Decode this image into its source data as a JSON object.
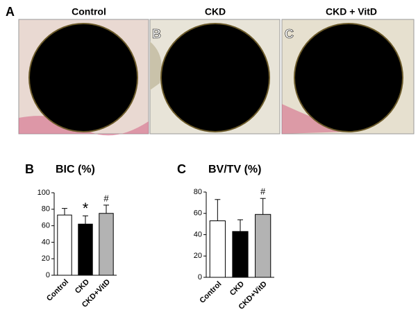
{
  "figure": {
    "panel_label": "A",
    "images": [
      {
        "title": "Control"
      },
      {
        "title": "CKD",
        "label": "B"
      },
      {
        "title": "CKD + VitD",
        "label": "C"
      }
    ]
  },
  "chart_data": [
    {
      "type": "bar",
      "panel_label": "B",
      "title": "BIC (%)",
      "categories": [
        "Control",
        "CKD",
        "CKD+VitD"
      ],
      "values": [
        73,
        62,
        75
      ],
      "errors": [
        8,
        10,
        10
      ],
      "colors": [
        "#ffffff",
        "#000000",
        "#b3b3b3"
      ],
      "annotations": [
        null,
        "*",
        "#"
      ],
      "ylim": [
        0,
        100
      ],
      "yticks": [
        0,
        20,
        40,
        60,
        80,
        100
      ]
    },
    {
      "type": "bar",
      "panel_label": "C",
      "title": "BV/TV (%)",
      "categories": [
        "Control",
        "CKD",
        "CKD+VitD"
      ],
      "values": [
        53,
        43,
        59
      ],
      "errors": [
        20,
        11,
        15
      ],
      "colors": [
        "#ffffff",
        "#000000",
        "#b3b3b3"
      ],
      "annotations": [
        null,
        null,
        "#"
      ],
      "ylim": [
        0,
        80
      ],
      "yticks": [
        0,
        20,
        40,
        60,
        80
      ]
    }
  ]
}
